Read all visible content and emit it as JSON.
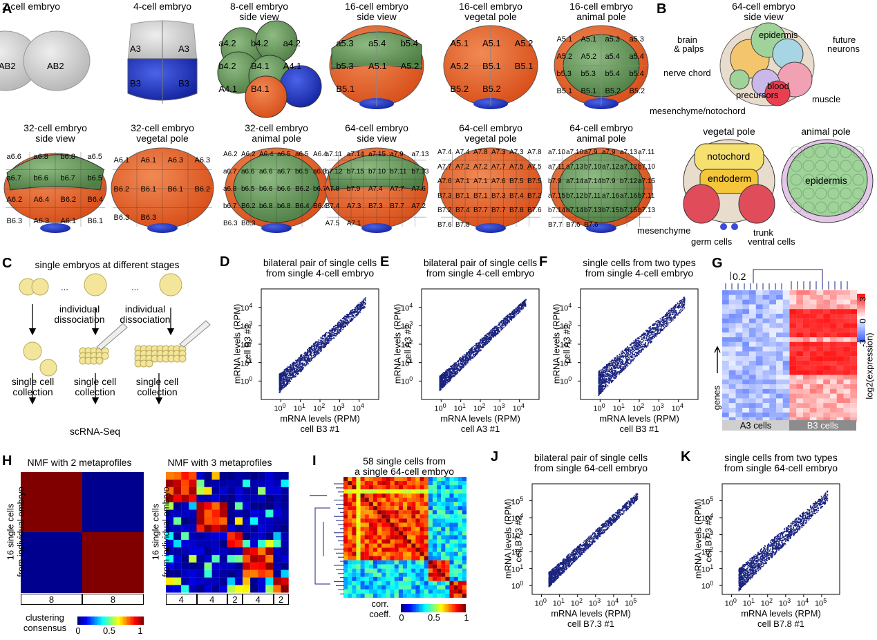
{
  "panels": {
    "A": {
      "label": "A",
      "row1": [
        {
          "title": [
            "2-cell embryo"
          ],
          "cells": [
            "AB2",
            "AB2"
          ]
        },
        {
          "title": [
            "4-cell embryo"
          ],
          "cells": [
            "A3",
            "A3",
            "B3",
            "B3"
          ]
        },
        {
          "title": [
            "8-cell embryo",
            "side view"
          ],
          "cells": [
            "a4.2",
            "b4.2",
            "a4.2",
            "b4.2",
            "B4.1",
            "A4.1",
            "A4.1",
            "B4.1"
          ]
        },
        {
          "title": [
            "16-cell embryo",
            "side view"
          ],
          "cells": [
            "a5.3",
            "a5.4",
            "b5.4",
            "b5.3",
            "A5.1",
            "A5.2",
            "B5.1"
          ]
        },
        {
          "title": [
            "16-cell embryo",
            "vegetal pole"
          ],
          "cells": [
            "A5.1",
            "A5.1",
            "A5.2",
            "A5.2",
            "B5.1",
            "B5.1",
            "B5.2",
            "B5.2"
          ]
        },
        {
          "title": [
            "16-cell embryo",
            "animal pole"
          ],
          "cells": [
            "A5.1",
            "A5.1",
            "a5.3",
            "a5.3",
            "A5.2",
            "A5.2",
            "a5.4",
            "a5.4",
            "b5.3",
            "b5.3",
            "b5.4",
            "b5.4",
            "B5.1",
            "B5.1",
            "B5.2",
            "B5.2"
          ]
        }
      ],
      "row2": [
        {
          "title": [
            "32-cell embryo",
            "side view"
          ],
          "cells": [
            "a6.6",
            "a6.8",
            "b6.8",
            "a6.5",
            "a6.7",
            "b6.6",
            "b6.7",
            "b6.5",
            "A6.2",
            "A6.4",
            "B6.2",
            "B6.4",
            "B6.3",
            "A6.3",
            "A6.1",
            "B6.1"
          ]
        },
        {
          "title": [
            "32-cell embryo",
            "vegetal pole"
          ],
          "cells": [
            "A6.1",
            "A6.1",
            "A6.3",
            "A6.3",
            "B6.2",
            "B6.1",
            "B6.1",
            "B6.2",
            "B6.3",
            "B6.3"
          ]
        },
        {
          "title": [
            "32-cell embryo",
            "animal pole"
          ],
          "cells": [
            "A6.2",
            "A6.2",
            "A6.4",
            "a6.5",
            "a6.5",
            "A6.4",
            "a6.7",
            "a6.6",
            "a6.6",
            "a6.7",
            "b6.5",
            "a6.8",
            "a6.8",
            "b6.5",
            "b6.6",
            "b6.6",
            "B6.2",
            "b6.7",
            "b6.7",
            "B6.2",
            "b6.8",
            "b6.8",
            "B6.4",
            "B6.4",
            "B6.3",
            "B6.3"
          ]
        },
        {
          "title": [
            "64-cell embryo",
            "side view"
          ],
          "cells": [
            "a7.11",
            "a7.14",
            "a7.15",
            "a7.9",
            "a7.13",
            "b7.12",
            "b7.15",
            "b7.10",
            "b7.11",
            "b7.13",
            "A7.8",
            "b7.9",
            "A7.4",
            "A7.7",
            "A7.6",
            "B7.4",
            "A7.3",
            "B7.3",
            "B7.7",
            "A7.2",
            "A7.5",
            "A7.1"
          ]
        },
        {
          "title": [
            "64-cell embryo",
            "vegetal pole"
          ],
          "cells": [
            "A7.4",
            "A7.4",
            "A7.8",
            "A7.3",
            "A7.3",
            "A7.8",
            "A7.7",
            "A7.2",
            "A7.2",
            "A7.7",
            "A7.5",
            "A7.5",
            "A7.6",
            "A7.1",
            "A7.1",
            "A7.6",
            "B7.5",
            "B7.5",
            "B7.3",
            "B7.1",
            "B7.1",
            "B7.3",
            "B7.4",
            "B7.2",
            "B7.2",
            "B7.4",
            "B7.7",
            "B7.7",
            "B7.8",
            "B7.6",
            "B7.6",
            "B7.8"
          ]
        },
        {
          "title": [
            "64-cell embryo",
            "animal pole"
          ],
          "cells": [
            "a7.10",
            "a7.10",
            "a7.9",
            "a7.9",
            "a7.13",
            "a7.11",
            "a7.11",
            "a7.13",
            "b7.10",
            "a7.12",
            "a7.12",
            "b7.10",
            "b7.9",
            "a7.14",
            "a7.14",
            "b7.9",
            "b7.12",
            "a7.15",
            "a7.15",
            "b7.12",
            "b7.11",
            "a7.16",
            "a7.16",
            "b7.11",
            "b7.14",
            "b7.14",
            "b7.13",
            "b7.15",
            "b7.15",
            "b7.13",
            "B7.7",
            "B7.6",
            "B7.6"
          ]
        }
      ]
    },
    "B": {
      "label": "B",
      "side_title": [
        "64-cell embryo",
        "side view"
      ],
      "side_labels": [
        "brain",
        "& palps",
        "epidermis",
        "future",
        "neurons",
        "nerve chord",
        "blood",
        "precursors",
        "muscle",
        "mesenchyme/notochord"
      ],
      "vegetal_title": "vegetal pole",
      "vegetal_labels": [
        "notochord",
        "endoderm",
        "mesenchyme",
        "germ cells",
        "trunk",
        "ventral cells"
      ],
      "animal_title": "animal pole",
      "animal_labels": [
        "epidermis"
      ]
    },
    "C": {
      "label": "C",
      "title": "single embryos at different stages",
      "dots": [
        "...",
        "..."
      ],
      "dissociation": [
        "individual",
        "dissociation"
      ],
      "collection": [
        "single cell",
        "collection"
      ],
      "method": "scRNA-Seq"
    },
    "D": {
      "label": "D",
      "title": [
        "bilateral pair of single cells",
        "from single 4-cell embryo"
      ],
      "ylabel": [
        "mRNA levels (RPM)",
        "cell B3 #2"
      ],
      "xlabel": [
        "mRNA levels (RPM)",
        "cell B3 #1"
      ]
    },
    "E": {
      "label": "E",
      "title": [
        "bilateral pair of single cells",
        "from single 4-cell embryo"
      ],
      "ylabel": [
        "mRNA levels (RPM)",
        "cell A3 #2"
      ],
      "xlabel": [
        "mRNA levels (RPM)",
        "cell A3 #1"
      ]
    },
    "F": {
      "label": "F",
      "title": [
        "single cells from two types",
        "from single 4-cell embryo"
      ],
      "ylabel": [
        "mRNA levels (RPM)",
        "cell A3 #2"
      ],
      "xlabel": [
        "mRNA levels (RPM)",
        "cell B3 #1"
      ]
    },
    "G": {
      "label": "G",
      "scale": "0.2",
      "colorbar_title": "log2(expression)",
      "colorbar_ticks": [
        "3",
        "0",
        "-3"
      ],
      "row_label": "genes",
      "groups": [
        "A3 cells",
        "B3 cells"
      ]
    },
    "H": {
      "label": "H",
      "title2": "NMF with 2 metaprofiles",
      "title3": "NMF with 3 metaprofiles",
      "ylabel": [
        "16 single cells",
        "from individual embryo"
      ],
      "counts2": [
        "8",
        "8"
      ],
      "counts3": [
        "4",
        "4",
        "2",
        "4",
        "2"
      ],
      "legend_title": [
        "clustering",
        "consensus"
      ],
      "legend_ticks": [
        "0",
        "0.5",
        "1"
      ]
    },
    "I": {
      "label": "I",
      "title": [
        "58 single cells from",
        "a single 64-cell embryo"
      ],
      "colorbar_title": "corr. coeff.",
      "colorbar_ticks": [
        "0",
        "0.5",
        "1"
      ]
    },
    "J": {
      "label": "J",
      "title": [
        "bilateral pair of single cells",
        "from single 64-cell embryo"
      ],
      "ylabel": [
        "mRNA levels (RPM)",
        "cell B7.3 #2"
      ],
      "xlabel": [
        "mRNA levels (RPM)",
        "cell B7.3 #1"
      ]
    },
    "K": {
      "label": "K",
      "title": [
        "single cells from two types",
        "from single 64-cell embryo"
      ],
      "ylabel": [
        "mRNA levels (RPM)",
        "cell B7.3 #2"
      ],
      "xlabel": [
        "mRNA levels (RPM)",
        "cell B7.8 #1"
      ]
    }
  },
  "chart_data": [
    {
      "panel": "D",
      "type": "scatter",
      "x_scale": "log",
      "y_scale": "log",
      "x_ticks": [
        "10^0",
        "10^1",
        "10^2",
        "10^3",
        "10^4"
      ],
      "y_ticks": [
        "10^0",
        "10^1",
        "10^2",
        "10^3",
        "10^4"
      ],
      "xlim": [
        0.1,
        100000
      ],
      "ylim": [
        0.1,
        100000
      ]
    },
    {
      "panel": "E",
      "type": "scatter",
      "x_scale": "log",
      "y_scale": "log",
      "x_ticks": [
        "10^0",
        "10^1",
        "10^2",
        "10^3",
        "10^4"
      ],
      "y_ticks": [
        "10^0",
        "10^1",
        "10^2",
        "10^3",
        "10^4"
      ],
      "xlim": [
        0.1,
        100000
      ],
      "ylim": [
        0.1,
        100000
      ]
    },
    {
      "panel": "F",
      "type": "scatter",
      "x_scale": "log",
      "y_scale": "log",
      "x_ticks": [
        "10^0",
        "10^1",
        "10^2",
        "10^3",
        "10^4"
      ],
      "y_ticks": [
        "10^0",
        "10^1",
        "10^2",
        "10^3",
        "10^4"
      ],
      "xlim": [
        0.1,
        100000
      ],
      "ylim": [
        0.1,
        100000
      ]
    },
    {
      "panel": "J",
      "type": "scatter",
      "x_scale": "log",
      "y_scale": "log",
      "x_ticks": [
        "10^0",
        "10^1",
        "10^2",
        "10^3",
        "10^4",
        "10^5"
      ],
      "y_ticks": [
        "10^0",
        "10^1",
        "10^2",
        "10^3",
        "10^4",
        "10^5"
      ],
      "xlim": [
        0.3,
        1000000
      ],
      "ylim": [
        0.3,
        1000000
      ]
    },
    {
      "panel": "K",
      "type": "scatter",
      "x_scale": "log",
      "y_scale": "log",
      "x_ticks": [
        "10^0",
        "10^1",
        "10^2",
        "10^3",
        "10^4",
        "10^5"
      ],
      "y_ticks": [
        "10^0",
        "10^1",
        "10^2",
        "10^3",
        "10^4",
        "10^5"
      ],
      "xlim": [
        0.3,
        1000000
      ],
      "ylim": [
        0.3,
        1000000
      ]
    },
    {
      "panel": "G",
      "type": "heatmap",
      "colorbar": [
        -3,
        3
      ]
    },
    {
      "panel": "H",
      "type": "heatmap",
      "colorbar": [
        0,
        1
      ]
    },
    {
      "panel": "I",
      "type": "heatmap",
      "colorbar": [
        0,
        1
      ]
    }
  ],
  "colors": {
    "orange": "#e8632b",
    "green": "#6a9a5e",
    "blue": "#2a3fc0",
    "grey": "#c8c8c8",
    "navy": "#1a237e"
  }
}
